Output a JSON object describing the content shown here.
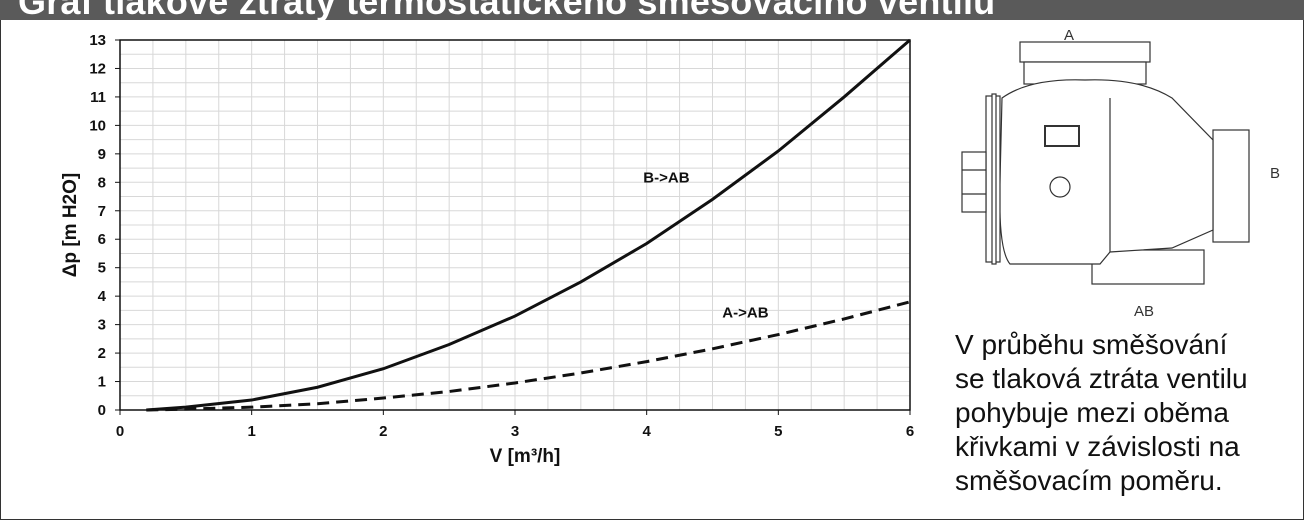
{
  "title": "Graf tlakové ztráty termostatického směšovacího ventilu",
  "chart_data": {
    "type": "line",
    "xlabel": "V [m³/h]",
    "ylabel": "Δp [m H2O]",
    "xlim": [
      0,
      6
    ],
    "ylim": [
      0,
      13
    ],
    "xticks": [
      0,
      1,
      2,
      3,
      4,
      5,
      6
    ],
    "yticks": [
      0,
      1,
      2,
      3,
      4,
      5,
      6,
      7,
      8,
      9,
      10,
      11,
      12,
      13
    ],
    "grid": true,
    "series": [
      {
        "name": "B->AB",
        "style": "solid",
        "x": [
          0.2,
          0.5,
          1,
          1.5,
          2,
          2.5,
          3,
          3.5,
          4,
          4.5,
          5,
          5.5,
          6
        ],
        "y": [
          0.0,
          0.1,
          0.35,
          0.8,
          1.45,
          2.3,
          3.3,
          4.5,
          5.85,
          7.4,
          9.1,
          11.0,
          13.0
        ]
      },
      {
        "name": "A->AB",
        "style": "dashed",
        "x": [
          0.2,
          0.5,
          1,
          1.5,
          2,
          2.5,
          3,
          3.5,
          4,
          4.5,
          5,
          5.5,
          6
        ],
        "y": [
          0.0,
          0.03,
          0.1,
          0.22,
          0.42,
          0.65,
          0.95,
          1.3,
          1.7,
          2.15,
          2.65,
          3.2,
          3.8
        ]
      }
    ]
  },
  "valve_ports": {
    "a": "A",
    "b": "B",
    "ab": "AB"
  },
  "note": "V průběhu směšování\nse tlaková ztráta ventilu\npohybuje mezi oběma\nkřivkami v závislosti na\nsměšovacím poměru.",
  "colors": {
    "title_bar": "#5a5a5a",
    "curve": "#111111",
    "grid": "#d8d8d8"
  }
}
